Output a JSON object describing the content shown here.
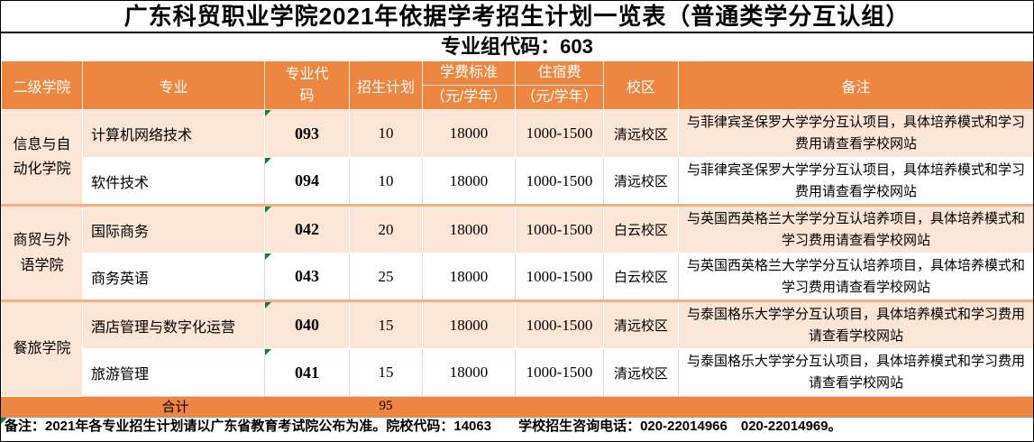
{
  "title": "广东科贸职业学院2021年依据学考招生计划一览表（普通类学分互认组）",
  "subtitle": "专业组代码：603",
  "colors": {
    "accent_orange": "#ED8640",
    "row_peach": "#FBE5D6",
    "group_separator": "#F4B183",
    "flag_green": "#1E7B34"
  },
  "table": {
    "headers": {
      "college": "二级学院",
      "major": "专业",
      "code": "专业代码",
      "plan": "招生计划",
      "tuition_line1": "学费标准",
      "tuition_line2": "（元/学年）",
      "accommodation_line1": "住宿费",
      "accommodation_line2": "（元/学年）",
      "campus": "校区",
      "remark": "备注"
    },
    "groups": [
      {
        "college": "信息与自动化学院",
        "majors": [
          {
            "name": "计算机网络技术",
            "code": "093",
            "plan": "10",
            "tuition": "18000",
            "accommodation": "1000-1500",
            "campus": "清远校区",
            "remark": "与菲律宾圣保罗大学学分互认项目，具体培养模式和学习费用请查看学校网站"
          },
          {
            "name": "软件技术",
            "code": "094",
            "plan": "10",
            "tuition": "18000",
            "accommodation": "1000-1500",
            "campus": "清远校区",
            "remark": "与菲律宾圣保罗大学学分互认项目，具体培养模式和学习费用请查看学校网站"
          }
        ]
      },
      {
        "college": "商贸与外语学院",
        "majors": [
          {
            "name": "国际商务",
            "code": "042",
            "plan": "20",
            "tuition": "18000",
            "accommodation": "1000-1500",
            "campus": "白云校区",
            "remark": "与英国西英格兰大学学分互认培养项目，具体培养模式和学习费用请查看学校网站"
          },
          {
            "name": "商务英语",
            "code": "043",
            "plan": "25",
            "tuition": "18000",
            "accommodation": "1000-1500",
            "campus": "白云校区",
            "remark": "与英国西英格兰大学学分互认培养项目，具体培养模式和学习费用请查看学校网站"
          }
        ]
      },
      {
        "college": "餐旅学院",
        "majors": [
          {
            "name": "酒店管理与数字化运营",
            "code": "040",
            "plan": "15",
            "tuition": "18000",
            "accommodation": "1000-1500",
            "campus": "清远校区",
            "remark": "与泰国格乐大学学分互认项目，具体培养模式和学习费用请查看学校网站"
          },
          {
            "name": "旅游管理",
            "code": "041",
            "plan": "15",
            "tuition": "18000",
            "accommodation": "1000-1500",
            "campus": "清远校区",
            "remark": "与泰国格乐大学学分互认项目，具体培养模式和学习费用请查看学校网站"
          }
        ]
      }
    ],
    "total": {
      "label": "合计",
      "plan": "95"
    }
  },
  "note": "备注：2021年各专业招生计划请以广东省教育考试院公布为准。院校代码：14063　　学校招生咨询电话：020-22014966　020-22014969。"
}
